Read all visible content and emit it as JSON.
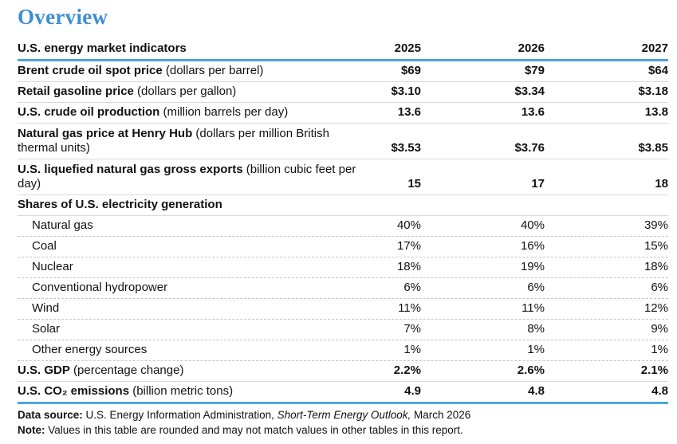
{
  "page": {
    "title": "Overview"
  },
  "colors": {
    "title_blue": "#3d8ed2",
    "rule_blue": "#4da5dc",
    "divider_gray": "#d9d9d9"
  },
  "table": {
    "header": {
      "label": "U.S. energy market indicators",
      "years": [
        "2025",
        "2026",
        "2027"
      ]
    },
    "rows": [
      {
        "label": "Brent crude oil spot price",
        "unit": " (dollars per barrel)",
        "values": [
          "$69",
          "$79",
          "$64"
        ]
      },
      {
        "label": "Retail gasoline price",
        "unit": " (dollars per gallon)",
        "values": [
          "$3.10",
          "$3.34",
          "$3.18"
        ]
      },
      {
        "label": "U.S. crude oil production",
        "unit": " (million barrels per day)",
        "values": [
          "13.6",
          "13.6",
          "13.8"
        ]
      },
      {
        "label": "Natural gas price at Henry Hub",
        "unit": " (dollars per million British thermal units)",
        "values": [
          "$3.53",
          "$3.76",
          "$3.85"
        ]
      },
      {
        "label": "U.S. liquefied natural gas gross exports",
        "unit": " (billion cubic feet per day)",
        "values": [
          "15",
          "17",
          "18"
        ]
      },
      {
        "label": "Shares of U.S. electricity generation",
        "unit": "",
        "values": [
          "",
          "",
          ""
        ]
      },
      {
        "label": "Natural gas",
        "unit": "",
        "values": [
          "40%",
          "40%",
          "39%"
        ]
      },
      {
        "label": "Coal",
        "unit": "",
        "values": [
          "17%",
          "16%",
          "15%"
        ]
      },
      {
        "label": "Nuclear",
        "unit": "",
        "values": [
          "18%",
          "19%",
          "18%"
        ]
      },
      {
        "label": "Conventional hydropower",
        "unit": "",
        "values": [
          "6%",
          "6%",
          "6%"
        ]
      },
      {
        "label": "Wind",
        "unit": "",
        "values": [
          "11%",
          "11%",
          "12%"
        ]
      },
      {
        "label": "Solar",
        "unit": "",
        "values": [
          "7%",
          "8%",
          "9%"
        ]
      },
      {
        "label": "Other energy sources",
        "unit": "",
        "values": [
          "1%",
          "1%",
          "1%"
        ]
      },
      {
        "label": "U.S. GDP",
        "unit": " (percentage change)",
        "values": [
          "2.2%",
          "2.6%",
          "2.1%"
        ]
      },
      {
        "label": "U.S. CO₂ emissions",
        "unit": " (billion metric tons)",
        "values": [
          "4.9",
          "4.8",
          "4.8"
        ]
      }
    ]
  },
  "footer": {
    "source_label": "Data source:",
    "source_text": " U.S. Energy Information Administration, ",
    "source_italic": "Short-Term Energy Outlook,",
    "source_suffix": " March 2026",
    "note_label": "Note:",
    "note_text": " Values in this table are rounded and may not match values in other tables in this report."
  },
  "chart_data": {
    "type": "table",
    "title": "Overview — U.S. energy market indicators",
    "categories": [
      "2025",
      "2026",
      "2027"
    ],
    "series": [
      {
        "name": "Brent crude oil spot price (dollars per barrel)",
        "values": [
          69,
          79,
          64
        ]
      },
      {
        "name": "Retail gasoline price (dollars per gallon)",
        "values": [
          3.1,
          3.34,
          3.18
        ]
      },
      {
        "name": "U.S. crude oil production (million barrels per day)",
        "values": [
          13.6,
          13.6,
          13.8
        ]
      },
      {
        "name": "Natural gas price at Henry Hub (dollars per million British thermal units)",
        "values": [
          3.53,
          3.76,
          3.85
        ]
      },
      {
        "name": "U.S. liquefied natural gas gross exports (billion cubic feet per day)",
        "values": [
          15,
          17,
          18
        ]
      },
      {
        "name": "Share of U.S. electricity generation - Natural gas (%)",
        "values": [
          40,
          40,
          39
        ]
      },
      {
        "name": "Share of U.S. electricity generation - Coal (%)",
        "values": [
          17,
          16,
          15
        ]
      },
      {
        "name": "Share of U.S. electricity generation - Nuclear (%)",
        "values": [
          18,
          19,
          18
        ]
      },
      {
        "name": "Share of U.S. electricity generation - Conventional hydropower (%)",
        "values": [
          6,
          6,
          6
        ]
      },
      {
        "name": "Share of U.S. electricity generation - Wind (%)",
        "values": [
          11,
          11,
          12
        ]
      },
      {
        "name": "Share of U.S. electricity generation - Solar (%)",
        "values": [
          7,
          8,
          9
        ]
      },
      {
        "name": "Share of U.S. electricity generation - Other energy sources (%)",
        "values": [
          1,
          1,
          1
        ]
      },
      {
        "name": "U.S. GDP (percentage change)",
        "values": [
          2.2,
          2.6,
          2.1
        ]
      },
      {
        "name": "U.S. CO2 emissions (billion metric tons)",
        "values": [
          4.9,
          4.8,
          4.8
        ]
      }
    ]
  }
}
